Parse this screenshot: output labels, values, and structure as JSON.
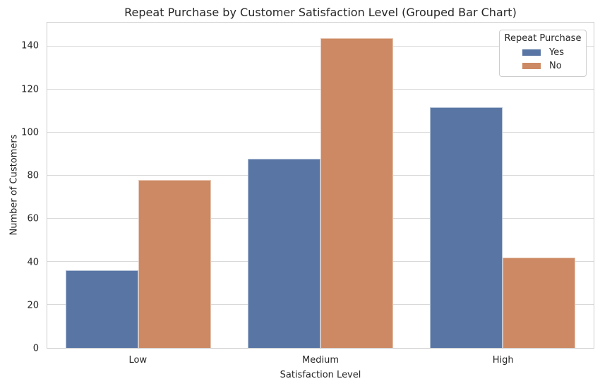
{
  "chart_data": {
    "type": "bar",
    "title": "Repeat Purchase by Customer Satisfaction Level (Grouped Bar Chart)",
    "xlabel": "Satisfaction Level",
    "ylabel": "Number of Customers",
    "categories": [
      "Low",
      "Medium",
      "High"
    ],
    "series": [
      {
        "name": "Yes",
        "values": [
          36,
          88,
          112
        ],
        "color": "#5875A4"
      },
      {
        "name": "No",
        "values": [
          78,
          144,
          42
        ],
        "color": "#CC8963"
      }
    ],
    "yticks": [
      0,
      20,
      40,
      60,
      80,
      100,
      120,
      140
    ],
    "ylim": [
      0,
      151.2
    ],
    "grid": true,
    "legend": {
      "title": "Repeat Purchase",
      "position": "upper-right"
    }
  },
  "colors": {
    "grid": "#d9d9d9",
    "spine": "#cccccc",
    "text": "#262626",
    "background": "#ffffff"
  }
}
